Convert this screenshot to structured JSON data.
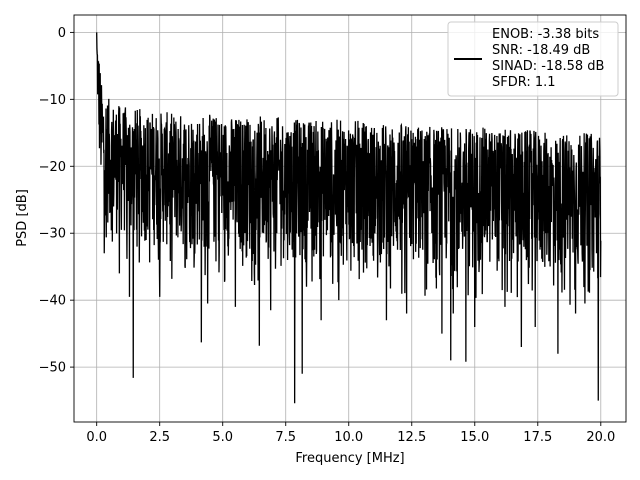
{
  "chart_data": {
    "type": "line",
    "title": "",
    "xlabel": "Frequency [MHz]",
    "ylabel": "PSD [dB]",
    "xlim": [
      -0.9,
      21.0
    ],
    "ylim": [
      -58.2,
      2.6
    ],
    "xticks": [
      0.0,
      2.5,
      5.0,
      7.5,
      10.0,
      12.5,
      15.0,
      17.5,
      20.0
    ],
    "xtick_labels": [
      "0.0",
      "2.5",
      "5.0",
      "7.5",
      "10.0",
      "12.5",
      "15.0",
      "17.5",
      "20.0"
    ],
    "yticks": [
      0,
      -10,
      -20,
      -30,
      -40,
      -50
    ],
    "ytick_labels": [
      "0",
      "−10",
      "−20",
      "−30",
      "−40",
      "−50"
    ],
    "grid": true,
    "legend_position": "top-right",
    "legend_lines": [
      "ENOB: -3.38 bits",
      "SNR: -18.49 dB",
      "SINAD: -18.58 dB",
      "SFDR: 1.1"
    ],
    "series_color": "#000000",
    "envelope": {
      "x_mhz": [
        0.0,
        0.1,
        0.2,
        0.5,
        1.0,
        2.0,
        3.0,
        4.0,
        5.0,
        6.0,
        7.0,
        8.0,
        9.0,
        10.0,
        11.0,
        12.0,
        13.0,
        14.0,
        15.0,
        16.0,
        17.0,
        18.0,
        19.0,
        20.0
      ],
      "upper_db": [
        0.0,
        -3.0,
        -8.0,
        -10.0,
        -11.0,
        -11.5,
        -12.0,
        -12.0,
        -12.5,
        -12.5,
        -12.5,
        -13.0,
        -13.0,
        -13.0,
        -13.5,
        -13.5,
        -14.0,
        -14.0,
        -14.0,
        -14.5,
        -14.5,
        -15.0,
        -15.0,
        -15.0
      ],
      "lower_typical_db": [
        -7.0,
        -20.0,
        -26.0,
        -30.0,
        -31.0,
        -32.0,
        -33.0,
        -33.0,
        -33.5,
        -34.0,
        -34.0,
        -34.5,
        -34.5,
        -35.0,
        -35.0,
        -35.5,
        -35.5,
        -36.0,
        -36.0,
        -36.0,
        -36.5,
        -36.5,
        -37.0,
        -37.0
      ]
    },
    "deep_nulls": [
      {
        "x": 0.3,
        "y": -33.0
      },
      {
        "x": 0.9,
        "y": -36.0
      },
      {
        "x": 1.3,
        "y": -39.5
      },
      {
        "x": 1.45,
        "y": -51.6
      },
      {
        "x": 2.5,
        "y": -39.5
      },
      {
        "x": 4.15,
        "y": -46.3
      },
      {
        "x": 4.4,
        "y": -40.5
      },
      {
        "x": 5.5,
        "y": -41.0
      },
      {
        "x": 6.45,
        "y": -46.8
      },
      {
        "x": 6.9,
        "y": -41.5
      },
      {
        "x": 7.85,
        "y": -55.4
      },
      {
        "x": 8.15,
        "y": -51.0
      },
      {
        "x": 8.9,
        "y": -43.0
      },
      {
        "x": 9.6,
        "y": -40.0
      },
      {
        "x": 11.5,
        "y": -43.0
      },
      {
        "x": 12.3,
        "y": -42.0
      },
      {
        "x": 13.7,
        "y": -45.0
      },
      {
        "x": 14.05,
        "y": -49.0
      },
      {
        "x": 14.15,
        "y": -42.0
      },
      {
        "x": 14.65,
        "y": -49.2
      },
      {
        "x": 15.0,
        "y": -44.0
      },
      {
        "x": 16.2,
        "y": -41.0
      },
      {
        "x": 16.85,
        "y": -47.0
      },
      {
        "x": 17.4,
        "y": -44.0
      },
      {
        "x": 18.3,
        "y": -48.0
      },
      {
        "x": 19.0,
        "y": -42.0
      },
      {
        "x": 19.9,
        "y": -55.0
      }
    ]
  }
}
